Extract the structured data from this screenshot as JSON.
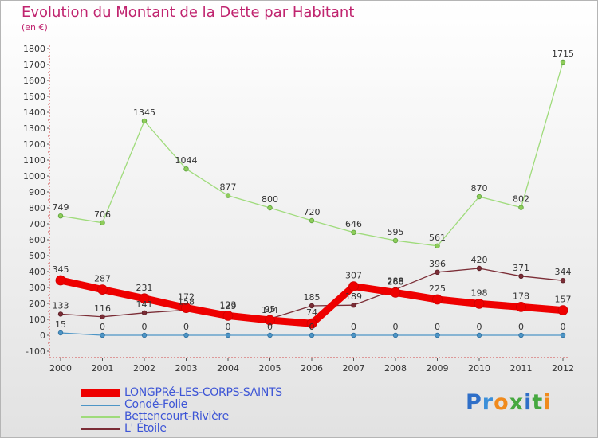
{
  "chart_data": {
    "type": "line",
    "title": "Evolution du Montant de la Dette par Habitant",
    "subtitle": "(en €)",
    "categories": [
      "2000",
      "2001",
      "2002",
      "2003",
      "2004",
      "2005",
      "2006",
      "2007",
      "2008",
      "2009",
      "2010",
      "2011",
      "2012"
    ],
    "ylim": [
      -100,
      1800
    ],
    "yticks": [
      -100,
      0,
      100,
      200,
      300,
      400,
      500,
      600,
      700,
      800,
      900,
      1000,
      1100,
      1200,
      1300,
      1400,
      1500,
      1600,
      1700,
      1800
    ],
    "grid": false,
    "legend_position": "bottom-left",
    "series": [
      {
        "name": "LONGPRé-LES-CORPS-SAINTS",
        "color": "#ee0000",
        "values": [
          345,
          287,
          231,
          172,
          123,
          95,
          74,
          307,
          268,
          225,
          198,
          178,
          157
        ]
      },
      {
        "name": "Condé-Folie",
        "color": "#4d95c6",
        "values": [
          15,
          0,
          0,
          0,
          0,
          0,
          0,
          0,
          0,
          0,
          0,
          0,
          0
        ]
      },
      {
        "name": "Bettencourt-Rivière",
        "color": "#9fdb7b",
        "values": [
          749,
          706,
          1345,
          1044,
          877,
          800,
          720,
          646,
          595,
          561,
          870,
          802,
          1715
        ]
      },
      {
        "name": "L' Étoile",
        "color": "#7b2d36",
        "values": [
          133,
          116,
          141,
          158,
          129,
          104,
          185,
          189,
          288,
          396,
          420,
          371,
          344
        ]
      }
    ]
  },
  "logo": {
    "letters": [
      {
        "ch": "P",
        "color": "#2f6fc8"
      },
      {
        "ch": "r",
        "color": "#3b8fd9"
      },
      {
        "ch": "o",
        "color": "#f08a1c"
      },
      {
        "ch": "x",
        "color": "#46a840"
      },
      {
        "ch": "i",
        "color": "#2f6fc8"
      },
      {
        "ch": "t",
        "color": "#46a840"
      },
      {
        "ch": "i",
        "color": "#f08a1c"
      }
    ]
  }
}
